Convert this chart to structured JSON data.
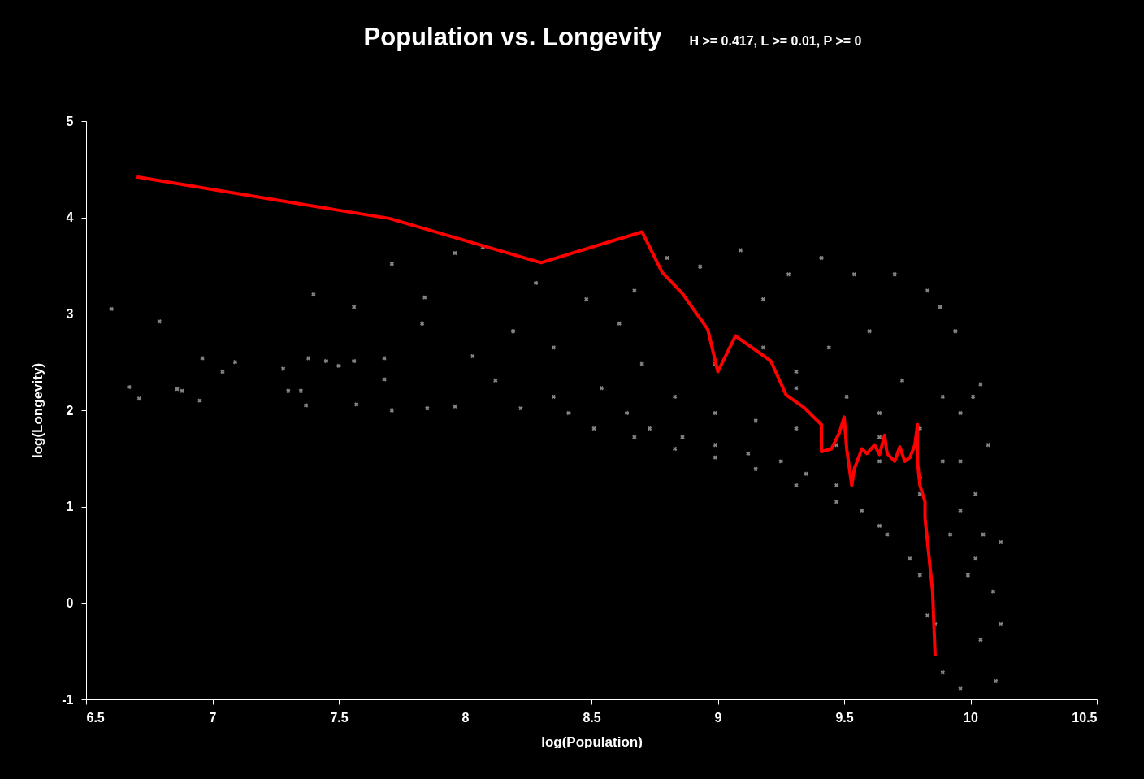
{
  "chart_data": {
    "type": "scatter",
    "title": "Population vs. Longevity",
    "subtitle": "H >= 0.417, L >= 0.01, P >= 0",
    "xlabel": "log(Population)",
    "ylabel": "log(Longevity)",
    "xlim": [
      6.5,
      10.5
    ],
    "xticks": [
      6.5,
      7,
      7.5,
      8,
      8.5,
      9,
      9.5,
      10,
      10.5
    ],
    "ylim": [
      -1,
      5
    ],
    "yticks": [
      -1,
      0,
      1,
      2,
      3,
      4,
      5
    ],
    "grid": false,
    "series": [
      {
        "marker": "cross",
        "color": "#9a9a9a",
        "x": [
          6.6,
          6.67,
          6.71,
          6.79,
          6.86,
          6.88,
          6.95,
          6.96,
          7.04,
          7.09,
          7.28,
          7.3,
          7.35,
          7.37,
          7.4,
          7.38,
          7.45,
          7.5,
          7.56,
          7.56,
          7.57,
          7.68,
          7.71,
          7.68,
          7.71,
          7.83,
          7.84,
          7.85,
          7.96,
          7.96,
          8.07,
          8.03,
          8.12,
          8.19,
          8.22,
          8.28,
          8.35,
          8.35,
          8.41,
          8.48,
          8.54,
          8.61,
          8.64,
          8.67,
          8.7,
          8.73,
          8.8,
          8.83,
          8.86,
          8.93,
          8.99,
          8.99,
          9.09,
          9.12,
          9.18,
          9.18,
          9.25,
          9.28,
          9.31,
          9.35,
          9.41,
          9.44,
          9.47,
          9.51,
          9.54,
          9.57,
          9.6,
          9.64,
          9.67,
          9.7,
          9.73,
          9.76,
          9.8,
          9.83,
          9.83,
          9.88,
          9.89,
          9.89,
          9.92,
          9.94,
          9.96,
          9.96,
          9.99,
          10.01,
          10.02,
          10.04,
          10.04,
          10.05,
          10.07,
          10.09,
          10.1,
          10.12,
          10.12,
          8.51,
          8.67,
          8.83,
          8.99,
          9.15,
          9.31,
          9.47,
          9.64,
          9.8,
          9.86,
          9.31,
          9.47,
          9.64,
          9.8,
          9.89,
          9.96,
          10.02,
          9.64,
          9.8,
          9.15,
          8.99,
          9.31,
          9.96
        ],
        "values": [
          3.05,
          2.24,
          2.12,
          2.92,
          2.22,
          2.2,
          2.1,
          2.54,
          2.4,
          2.5,
          2.43,
          2.2,
          2.2,
          2.05,
          3.2,
          2.54,
          2.51,
          2.46,
          3.07,
          2.51,
          2.06,
          2.54,
          3.52,
          2.32,
          2.0,
          2.9,
          3.17,
          2.02,
          3.63,
          2.04,
          3.69,
          2.56,
          2.31,
          2.82,
          2.02,
          3.32,
          2.14,
          2.65,
          1.97,
          3.15,
          2.23,
          2.9,
          1.97,
          3.24,
          2.48,
          1.81,
          3.58,
          2.14,
          1.72,
          3.49,
          2.48,
          1.64,
          3.66,
          1.55,
          3.15,
          2.65,
          1.47,
          3.41,
          2.23,
          1.34,
          3.58,
          2.65,
          1.22,
          2.14,
          3.41,
          0.96,
          2.82,
          1.72,
          0.71,
          3.41,
          2.31,
          0.46,
          1.3,
          3.24,
          -0.13,
          3.07,
          2.14,
          -0.72,
          0.71,
          2.82,
          1.47,
          -0.89,
          0.29,
          2.14,
          1.13,
          2.27,
          -0.38,
          0.71,
          1.64,
          0.12,
          -0.81,
          0.63,
          -0.22,
          1.81,
          1.72,
          1.6,
          1.51,
          1.39,
          1.22,
          1.05,
          0.8,
          0.29,
          -0.22,
          1.81,
          1.64,
          1.47,
          1.13,
          1.47,
          0.96,
          0.46,
          1.97,
          1.81,
          1.89,
          1.97,
          2.4,
          1.97
        ]
      },
      {
        "type": "line",
        "color": "#ff0000",
        "x": [
          6.7,
          7.51,
          7.7,
          8.3,
          8.7,
          8.78,
          8.86,
          8.96,
          9.0,
          9.07,
          9.21,
          9.27,
          9.34,
          9.41,
          9.41,
          9.45,
          9.48,
          9.5,
          9.51,
          9.53,
          9.54,
          9.57,
          9.59,
          9.62,
          9.64,
          9.66,
          9.67,
          9.7,
          9.72,
          9.74,
          9.76,
          9.78,
          9.79,
          9.79,
          9.8,
          9.82,
          9.82,
          9.83,
          9.84,
          9.85,
          9.86
        ],
        "values": [
          4.42,
          4.07,
          3.99,
          3.53,
          3.85,
          3.43,
          3.21,
          2.84,
          2.4,
          2.77,
          2.51,
          2.16,
          2.03,
          1.85,
          1.57,
          1.6,
          1.76,
          1.93,
          1.6,
          1.22,
          1.39,
          1.6,
          1.55,
          1.64,
          1.54,
          1.74,
          1.55,
          1.47,
          1.62,
          1.47,
          1.51,
          1.64,
          1.85,
          1.47,
          1.22,
          1.05,
          0.88,
          0.63,
          0.37,
          0.12,
          -0.55
        ]
      }
    ]
  }
}
